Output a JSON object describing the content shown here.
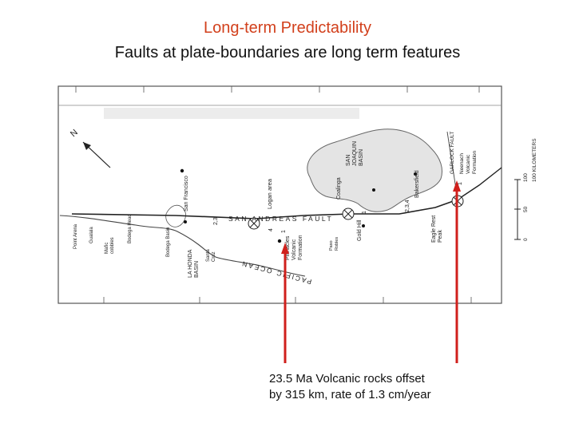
{
  "slide": {
    "title": "Long-term Predictability",
    "subtitle": "Faults at plate-boundaries are long term features"
  },
  "map": {
    "labels": {
      "san_joaquin_basin": [
        "SAN",
        "JOAQUIN",
        "BASIN"
      ],
      "san_andreas_fault": "SAN ANDREAS FAULT",
      "garlock_fault": "GARLOCK FAULT",
      "pacific_ocean": "PACIFIC OCEAN",
      "san_francisco": "San Francisco",
      "logan_area": "Logan area",
      "la_honda_basin": [
        "LA HONDA",
        "BASIN"
      ],
      "santa_cruz": [
        "Santa",
        "Cruz"
      ],
      "pinnacles_volcanic_formation": [
        "Pinnacles",
        "Volcanic",
        "Formation"
      ],
      "neenach_volcanic_formation": [
        "Neenach",
        "Volcanic",
        "Formation"
      ],
      "coalinga": "Coalinga",
      "bakersfield": "Bakersfield",
      "gold_hill": "Gold Hill",
      "eagle_rest_peak": [
        "Eagle Rest",
        "Peak"
      ],
      "paso_robles": [
        "Paso",
        "Robles"
      ],
      "point_arena": "Point Arena",
      "gualala": "Gualala",
      "mafic_cobbles": [
        "Mafic",
        "cobbles"
      ],
      "bodega_head": "Bodega Head",
      "bodega_basin": "Bodega Basin",
      "scale_title": "100 KILOMETERS",
      "scale_100": "100",
      "scale_50": "50",
      "scale_0": "0",
      "north": "N",
      "site_23": "2,3",
      "site_234": "2,3,4",
      "site_4": "4",
      "site_1a": "1",
      "site_1b": "1",
      "site_1c": "1"
    },
    "colors": {
      "arrow": "#d0201c",
      "basin_fill": "#e6e6e6",
      "lines": "#333333"
    }
  },
  "caption": {
    "line1": "23.5 Ma Volcanic rocks offset",
    "line2": "by 315 km, rate of 1.3 cm/year"
  }
}
